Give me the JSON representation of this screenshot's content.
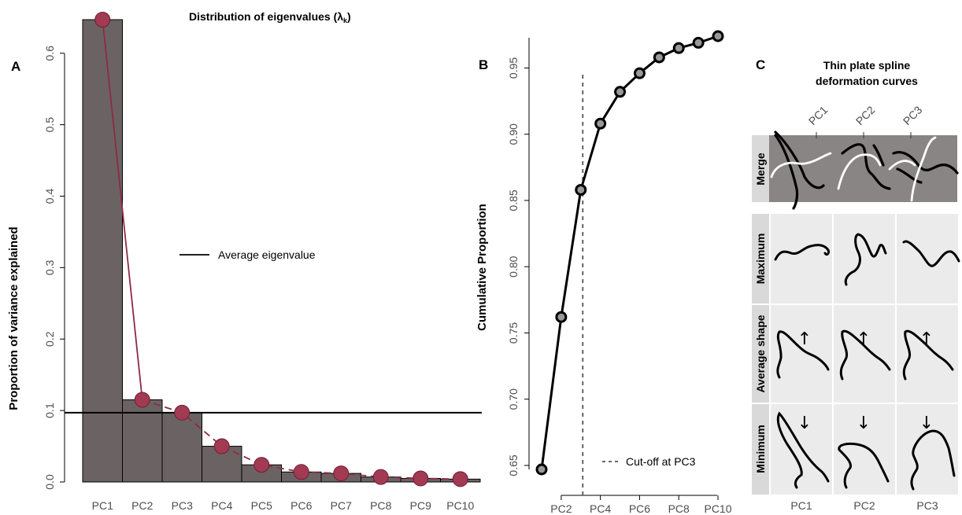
{
  "chart_data": [
    {
      "panel": "A",
      "type": "bar",
      "title": "Distribution of eigenvalues (λ",
      "title_subscript": "k",
      "title_close": ")",
      "ylabel": "Proportion of variance explained",
      "xlabel": "",
      "categories": [
        "PC1",
        "PC2",
        "PC3",
        "PC4",
        "PC5",
        "PC6",
        "PC7",
        "PC8",
        "PC9",
        "PC10"
      ],
      "values": [
        0.647,
        0.115,
        0.097,
        0.05,
        0.024,
        0.014,
        0.012,
        0.007,
        0.005,
        0.004
      ],
      "y_ticks": [
        "0.0",
        "0.1",
        "0.2",
        "0.3",
        "0.4",
        "0.5",
        "0.6"
      ],
      "y_tick_values": [
        0,
        0.1,
        0.2,
        0.3,
        0.4,
        0.5,
        0.6
      ],
      "ylim": [
        0,
        0.647
      ],
      "average_eigenvalue": 0.097,
      "legend_label": "Average eigenvalue",
      "colors": {
        "bar": "#6b6363",
        "point": "#a23a53",
        "line": "#8e2a45"
      }
    },
    {
      "panel": "B",
      "type": "line",
      "ylabel": "Cumulative Proportion",
      "xlabel": "",
      "x": [
        1,
        2,
        3,
        4,
        5,
        6,
        7,
        8,
        9,
        10
      ],
      "values": [
        0.647,
        0.762,
        0.858,
        0.908,
        0.932,
        0.946,
        0.958,
        0.965,
        0.969,
        0.974
      ],
      "x_ticks": [
        "PC2",
        "PC4",
        "PC6",
        "PC8",
        "PC10"
      ],
      "x_tick_values": [
        2,
        4,
        6,
        8,
        10
      ],
      "y_ticks": [
        "0.65",
        "0.70",
        "0.75",
        "0.80",
        "0.85",
        "0.90",
        "0.95"
      ],
      "y_tick_values": [
        0.65,
        0.7,
        0.75,
        0.8,
        0.85,
        0.9,
        0.95
      ],
      "ylim": [
        0.647,
        0.974
      ],
      "cutoff_x": 3.1,
      "cutoff_label": "Cut-off at PC3"
    }
  ],
  "panel_a_letter": "A",
  "panel_b_letter": "B",
  "panel_c_letter": "C",
  "panel_c": {
    "title_line1": "Thin plate spline",
    "title_line2": "deformation curves",
    "top_labels": [
      "PC1",
      "PC2",
      "PC3"
    ],
    "bottom_labels": [
      "PC1",
      "PC2",
      "PC3"
    ],
    "row_labels": [
      "Merge",
      "Maximum",
      "Average shape",
      "Minimum"
    ],
    "up_arrow": "↑",
    "down_arrow": "↓",
    "colors": {
      "merge_bg": "#8a8585",
      "cell_bg": "#ebebeb",
      "strip_bg": "#d9d9d9"
    }
  }
}
